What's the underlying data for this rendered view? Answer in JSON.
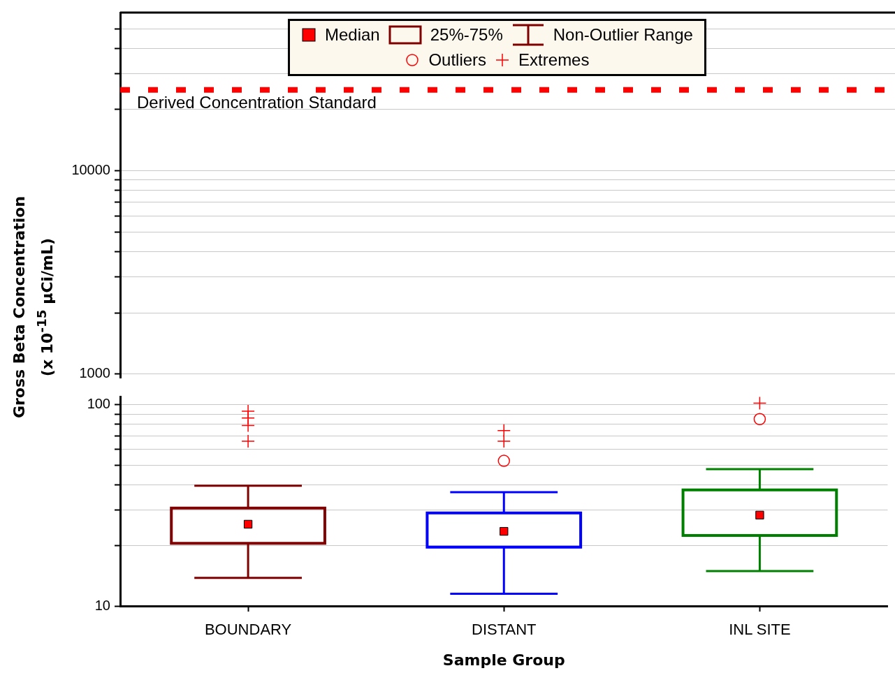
{
  "chart_data": [
    {
      "type": "box",
      "categories": [
        null,
        null,
        null
      ],
      "ylim": [
        960,
        60000
      ],
      "yticks": [
        1000,
        {
          "value": 2000,
          "label": null
        },
        {
          "value": 3000,
          "label": null
        },
        {
          "value": 4000,
          "label": null
        },
        {
          "value": 5000,
          "label": null
        },
        {
          "value": 6000,
          "label": null
        },
        {
          "value": 7000,
          "label": null
        },
        {
          "value": 8000,
          "label": null
        },
        {
          "value": 9000,
          "label": null
        },
        10000,
        {
          "value": 20000,
          "label": null
        },
        {
          "value": 30000,
          "label": null
        },
        {
          "value": 40000,
          "label": null
        },
        {
          "value": 50000,
          "label": null
        }
      ],
      "ref_lines": [
        {
          "axis": "y",
          "value": 25000,
          "label": "Derived Concentration Standard",
          "color": "#ff0000",
          "line_style": "dotted"
        }
      ],
      "log": true,
      "grid": "y"
    },
    {
      "type": "box",
      "xlabel": "Sample Group",
      "ylabel": "Gross Beta Concentration (x 10$^{-15}$ µCi/mL)",
      "categories": [
        "BOUNDARY",
        "DISTANT",
        "INL SITE"
      ],
      "series": [
        {
          "type": "box",
          "color": "#ff0000",
          "colors": [
            "#800000",
            "#0000ff",
            "#008000"
          ],
          "boxes": [
            {
              "low": 13.8,
              "q1": 20.5,
              "median": 25.5,
              "q3": 30.7,
              "high": 39.6
            },
            {
              "low": 11.5,
              "q1": 19.6,
              "median": 23.5,
              "q3": 29,
              "high": 36.8,
              "outliers": [
                52.7
              ]
            },
            {
              "low": 14.9,
              "q1": 22.4,
              "median": 28.3,
              "q3": 37.8,
              "high": 47.9,
              "outliers": [
                85
              ]
            }
          ]
        },
        {
          "type": "scatter",
          "name": "Extremes",
          "marker": "cross",
          "color": "#ff0000",
          "x": [
            "BOUNDARY",
            "BOUNDARY",
            "BOUNDARY",
            "BOUNDARY",
            "DISTANT",
            "DISTANT",
            "INL SITE"
          ],
          "values": [
            93,
            86,
            79,
            66,
            74.5,
            66,
            102
          ]
        }
      ],
      "annotations": [
        "Median",
        "25%-75%",
        "Non-Outlier Range",
        "Outliers"
      ],
      "ylim": [
        10,
        110
      ],
      "yticks": [
        10,
        {
          "value": 20,
          "label": null
        },
        {
          "value": 30,
          "label": null
        },
        {
          "value": 40,
          "label": null
        },
        {
          "value": 50,
          "label": null
        },
        {
          "value": 60,
          "label": null
        },
        {
          "value": 70,
          "label": null
        },
        {
          "value": 80,
          "label": null
        },
        {
          "value": 90,
          "label": null
        },
        100
      ],
      "log": true,
      "grid": "y",
      "legend": "top"
    }
  ]
}
